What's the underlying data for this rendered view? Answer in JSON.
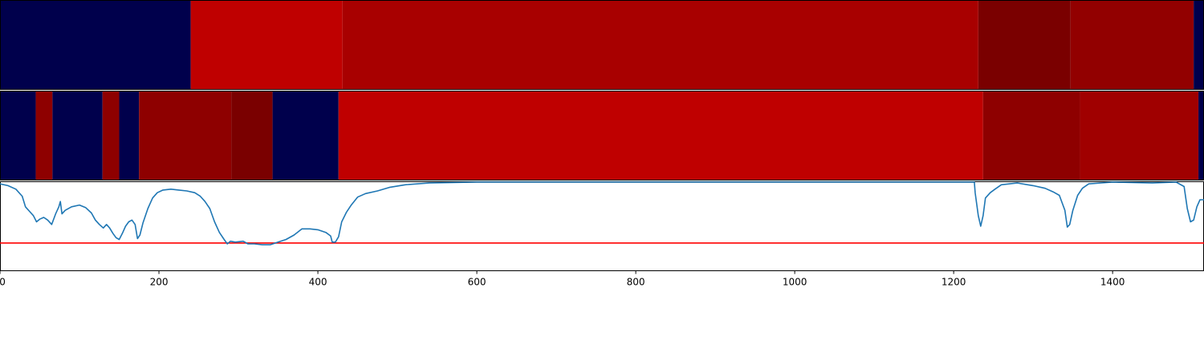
{
  "chart_data": {
    "type": "heatmap",
    "title": "",
    "xlabel": "",
    "ylabel": "",
    "xlim": [
      0,
      1515
    ],
    "x_ticks": [
      0,
      200,
      400,
      600,
      800,
      1000,
      1200,
      1400
    ],
    "x_tick_labels": [
      "0",
      "200",
      "400",
      "600",
      "800",
      "1000",
      "1200",
      "1400"
    ],
    "grid": false,
    "tracks": [
      {
        "segments": [
          {
            "start": 0,
            "end": 240,
            "color": "#00004c"
          },
          {
            "start": 240,
            "end": 431,
            "color": "#bf0000"
          },
          {
            "start": 431,
            "end": 1231,
            "color": "#a80000"
          },
          {
            "start": 1231,
            "end": 1347,
            "color": "#7a0000"
          },
          {
            "start": 1347,
            "end": 1502,
            "color": "#920000"
          },
          {
            "start": 1502,
            "end": 1515,
            "color": "#00004c"
          }
        ]
      },
      {
        "segments": [
          {
            "start": 0,
            "end": 45,
            "color": "#00004c"
          },
          {
            "start": 45,
            "end": 66,
            "color": "#8e0000"
          },
          {
            "start": 66,
            "end": 129,
            "color": "#00004c"
          },
          {
            "start": 129,
            "end": 150,
            "color": "#8e0000"
          },
          {
            "start": 150,
            "end": 175,
            "color": "#00004c"
          },
          {
            "start": 175,
            "end": 291,
            "color": "#8e0000"
          },
          {
            "start": 291,
            "end": 343,
            "color": "#7a0000"
          },
          {
            "start": 343,
            "end": 426,
            "color": "#00004c"
          },
          {
            "start": 426,
            "end": 1237,
            "color": "#bf0000"
          },
          {
            "start": 1237,
            "end": 1359,
            "color": "#8e0000"
          },
          {
            "start": 1359,
            "end": 1508,
            "color": "#a00000"
          },
          {
            "start": 1508,
            "end": 1515,
            "color": "#00004c"
          }
        ]
      }
    ],
    "line": {
      "color": "#1f77b4",
      "ylim": [
        0,
        1
      ],
      "points": [
        [
          0,
          0.98
        ],
        [
          10,
          0.96
        ],
        [
          20,
          0.92
        ],
        [
          28,
          0.84
        ],
        [
          32,
          0.72
        ],
        [
          38,
          0.66
        ],
        [
          42,
          0.62
        ],
        [
          46,
          0.55
        ],
        [
          50,
          0.58
        ],
        [
          55,
          0.6
        ],
        [
          60,
          0.57
        ],
        [
          65,
          0.52
        ],
        [
          70,
          0.64
        ],
        [
          74,
          0.72
        ],
        [
          76,
          0.78
        ],
        [
          78,
          0.64
        ],
        [
          82,
          0.68
        ],
        [
          90,
          0.72
        ],
        [
          100,
          0.74
        ],
        [
          108,
          0.71
        ],
        [
          115,
          0.65
        ],
        [
          120,
          0.57
        ],
        [
          125,
          0.52
        ],
        [
          130,
          0.48
        ],
        [
          134,
          0.52
        ],
        [
          138,
          0.48
        ],
        [
          142,
          0.42
        ],
        [
          146,
          0.37
        ],
        [
          150,
          0.35
        ],
        [
          154,
          0.42
        ],
        [
          158,
          0.5
        ],
        [
          162,
          0.55
        ],
        [
          166,
          0.57
        ],
        [
          170,
          0.52
        ],
        [
          173,
          0.36
        ],
        [
          176,
          0.4
        ],
        [
          180,
          0.54
        ],
        [
          186,
          0.7
        ],
        [
          192,
          0.82
        ],
        [
          198,
          0.88
        ],
        [
          205,
          0.91
        ],
        [
          215,
          0.92
        ],
        [
          225,
          0.91
        ],
        [
          235,
          0.9
        ],
        [
          245,
          0.88
        ],
        [
          252,
          0.84
        ],
        [
          258,
          0.78
        ],
        [
          264,
          0.7
        ],
        [
          270,
          0.55
        ],
        [
          276,
          0.43
        ],
        [
          282,
          0.35
        ],
        [
          286,
          0.3
        ],
        [
          290,
          0.33
        ],
        [
          296,
          0.32
        ],
        [
          306,
          0.33
        ],
        [
          312,
          0.3
        ],
        [
          320,
          0.3
        ],
        [
          330,
          0.29
        ],
        [
          340,
          0.29
        ],
        [
          350,
          0.32
        ],
        [
          360,
          0.35
        ],
        [
          370,
          0.4
        ],
        [
          380,
          0.47
        ],
        [
          390,
          0.47
        ],
        [
          400,
          0.46
        ],
        [
          410,
          0.43
        ],
        [
          416,
          0.39
        ],
        [
          418,
          0.32
        ],
        [
          422,
          0.32
        ],
        [
          426,
          0.38
        ],
        [
          430,
          0.55
        ],
        [
          436,
          0.66
        ],
        [
          442,
          0.74
        ],
        [
          450,
          0.83
        ],
        [
          460,
          0.87
        ],
        [
          475,
          0.9
        ],
        [
          490,
          0.94
        ],
        [
          510,
          0.97
        ],
        [
          540,
          0.99
        ],
        [
          600,
          1.0
        ],
        [
          800,
          1.0
        ],
        [
          1000,
          1.0
        ],
        [
          1200,
          1.0
        ],
        [
          1226,
          1.0
        ],
        [
          1227,
          0.88
        ],
        [
          1231,
          0.62
        ],
        [
          1234,
          0.5
        ],
        [
          1237,
          0.62
        ],
        [
          1240,
          0.82
        ],
        [
          1246,
          0.88
        ],
        [
          1252,
          0.92
        ],
        [
          1260,
          0.97
        ],
        [
          1280,
          0.99
        ],
        [
          1300,
          0.96
        ],
        [
          1315,
          0.93
        ],
        [
          1325,
          0.89
        ],
        [
          1333,
          0.85
        ],
        [
          1340,
          0.68
        ],
        [
          1343,
          0.49
        ],
        [
          1346,
          0.52
        ],
        [
          1350,
          0.68
        ],
        [
          1356,
          0.85
        ],
        [
          1362,
          0.93
        ],
        [
          1370,
          0.98
        ],
        [
          1400,
          1.0
        ],
        [
          1450,
          0.99
        ],
        [
          1480,
          1.0
        ],
        [
          1490,
          0.95
        ],
        [
          1494,
          0.7
        ],
        [
          1498,
          0.55
        ],
        [
          1502,
          0.57
        ],
        [
          1506,
          0.72
        ],
        [
          1510,
          0.8
        ],
        [
          1515,
          0.8
        ]
      ]
    },
    "threshold": {
      "y": 0.31,
      "color": "#ff0000"
    }
  }
}
